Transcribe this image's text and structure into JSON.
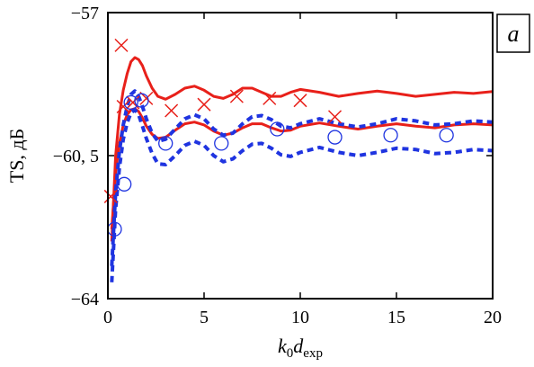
{
  "chart_data": {
    "type": "line",
    "title": "",
    "panel_label": "a",
    "xlabel": {
      "main": "k",
      "sub1": "0",
      "mid": "d",
      "sub2": "exp"
    },
    "ylabel": "TS, дБ",
    "xlim": [
      0,
      20
    ],
    "ylim": [
      -64,
      -57
    ],
    "xticks": [
      0,
      5,
      10,
      15,
      20
    ],
    "xtick_labels": [
      "0",
      "5",
      "10",
      "15",
      "20"
    ],
    "yticks": [
      -57,
      -60.5,
      -64
    ],
    "ytick_labels": [
      "−57",
      "−60, 5",
      "−64"
    ],
    "grid": false,
    "colors": {
      "red": "#e8201a",
      "blue": "#1f34e0"
    },
    "series": [
      {
        "kind": "line",
        "style": "solid",
        "color": "red",
        "x": [
          0.2,
          0.4,
          0.6,
          0.8,
          1.0,
          1.2,
          1.4,
          1.6,
          1.8,
          2.0,
          2.3,
          2.6,
          3.0,
          3.5,
          4.0,
          4.5,
          5.0,
          5.5,
          6.0,
          6.5,
          7.0,
          7.5,
          8.0,
          8.5,
          9.0,
          9.5,
          10.0,
          11.0,
          12.0,
          13.0,
          14.0,
          15.0,
          16.0,
          17.0,
          18.0,
          19.0,
          20.0
        ],
        "y": [
          -62.6,
          -60.5,
          -59.5,
          -58.9,
          -58.5,
          -58.2,
          -58.1,
          -58.15,
          -58.3,
          -58.55,
          -58.85,
          -59.05,
          -59.12,
          -59.0,
          -58.85,
          -58.8,
          -58.9,
          -59.05,
          -59.1,
          -59.0,
          -58.85,
          -58.85,
          -58.95,
          -59.05,
          -59.05,
          -58.95,
          -58.88,
          -58.95,
          -59.05,
          -58.98,
          -58.92,
          -58.98,
          -59.05,
          -59.0,
          -58.95,
          -58.98,
          -58.93
        ]
      },
      {
        "kind": "line",
        "style": "solid",
        "color": "red",
        "x": [
          0.2,
          0.4,
          0.6,
          0.8,
          1.0,
          1.2,
          1.4,
          1.6,
          1.8,
          2.0,
          2.3,
          2.6,
          3.0,
          3.5,
          4.0,
          4.5,
          5.0,
          5.5,
          6.0,
          6.5,
          7.0,
          7.5,
          8.0,
          8.5,
          9.0,
          9.5,
          10.0,
          11.0,
          12.0,
          13.0,
          14.0,
          15.0,
          16.0,
          17.0,
          18.0,
          19.0,
          20.0
        ],
        "y": [
          -62.3,
          -60.9,
          -60.2,
          -59.75,
          -59.5,
          -59.38,
          -59.35,
          -59.42,
          -59.58,
          -59.78,
          -59.98,
          -60.08,
          -60.05,
          -59.88,
          -59.72,
          -59.68,
          -59.75,
          -59.9,
          -60.0,
          -59.95,
          -59.82,
          -59.72,
          -59.72,
          -59.82,
          -59.9,
          -59.88,
          -59.78,
          -59.7,
          -59.78,
          -59.85,
          -59.78,
          -59.72,
          -59.78,
          -59.82,
          -59.75,
          -59.72,
          -59.75
        ]
      },
      {
        "kind": "line",
        "style": "dashed",
        "color": "blue",
        "x": [
          0.2,
          0.4,
          0.6,
          0.8,
          1.0,
          1.2,
          1.4,
          1.6,
          1.8,
          2.0,
          2.3,
          2.6,
          3.0,
          3.5,
          4.0,
          4.5,
          5.0,
          5.5,
          6.0,
          6.5,
          7.0,
          7.5,
          8.0,
          8.5,
          9.0,
          9.5,
          10.0,
          11.0,
          12.0,
          13.0,
          14.0,
          15.0,
          16.0,
          17.0,
          18.0,
          19.0,
          20.0
        ],
        "y": [
          -63.2,
          -61.4,
          -60.4,
          -59.75,
          -59.3,
          -59.0,
          -58.92,
          -59.05,
          -59.3,
          -59.6,
          -59.95,
          -60.15,
          -60.1,
          -59.85,
          -59.6,
          -59.5,
          -59.6,
          -59.85,
          -60.0,
          -59.95,
          -59.72,
          -59.55,
          -59.52,
          -59.62,
          -59.78,
          -59.82,
          -59.72,
          -59.6,
          -59.72,
          -59.8,
          -59.72,
          -59.6,
          -59.65,
          -59.75,
          -59.72,
          -59.65,
          -59.68
        ]
      },
      {
        "kind": "line",
        "style": "dashed",
        "color": "blue",
        "x": [
          0.2,
          0.4,
          0.6,
          0.8,
          1.0,
          1.2,
          1.4,
          1.6,
          1.8,
          2.0,
          2.3,
          2.6,
          3.0,
          3.5,
          4.0,
          4.5,
          5.0,
          5.5,
          6.0,
          6.5,
          7.0,
          7.5,
          8.0,
          8.5,
          9.0,
          9.5,
          10.0,
          11.0,
          12.0,
          13.0,
          14.0,
          15.0,
          16.0,
          17.0,
          18.0,
          19.0,
          20.0
        ],
        "y": [
          -63.6,
          -61.8,
          -60.8,
          -60.1,
          -59.7,
          -59.45,
          -59.38,
          -59.5,
          -59.78,
          -60.08,
          -60.45,
          -60.7,
          -60.72,
          -60.5,
          -60.25,
          -60.15,
          -60.25,
          -60.5,
          -60.65,
          -60.58,
          -60.38,
          -60.22,
          -60.2,
          -60.32,
          -60.48,
          -60.52,
          -60.42,
          -60.3,
          -60.42,
          -60.5,
          -60.42,
          -60.32,
          -60.35,
          -60.45,
          -60.42,
          -60.35,
          -60.38
        ]
      },
      {
        "kind": "scatter",
        "marker": "x",
        "color": "red",
        "x": [
          0.15,
          0.7,
          0.8,
          1.3,
          2.0,
          3.3,
          5.0,
          6.7,
          8.4,
          10.0,
          11.8
        ],
        "y": [
          -61.5,
          -57.8,
          -59.3,
          -59.2,
          -59.1,
          -59.4,
          -59.25,
          -59.05,
          -59.1,
          -59.15,
          -59.55
        ]
      },
      {
        "kind": "scatter",
        "marker": "circle",
        "color": "blue",
        "x": [
          0.35,
          0.85,
          1.2,
          1.75,
          3.0,
          5.9,
          8.8,
          11.8,
          14.7,
          17.6
        ],
        "y": [
          -62.3,
          -61.2,
          -59.2,
          -59.15,
          -60.2,
          -60.2,
          -59.85,
          -60.05,
          -60.0,
          -60.0
        ]
      }
    ]
  }
}
